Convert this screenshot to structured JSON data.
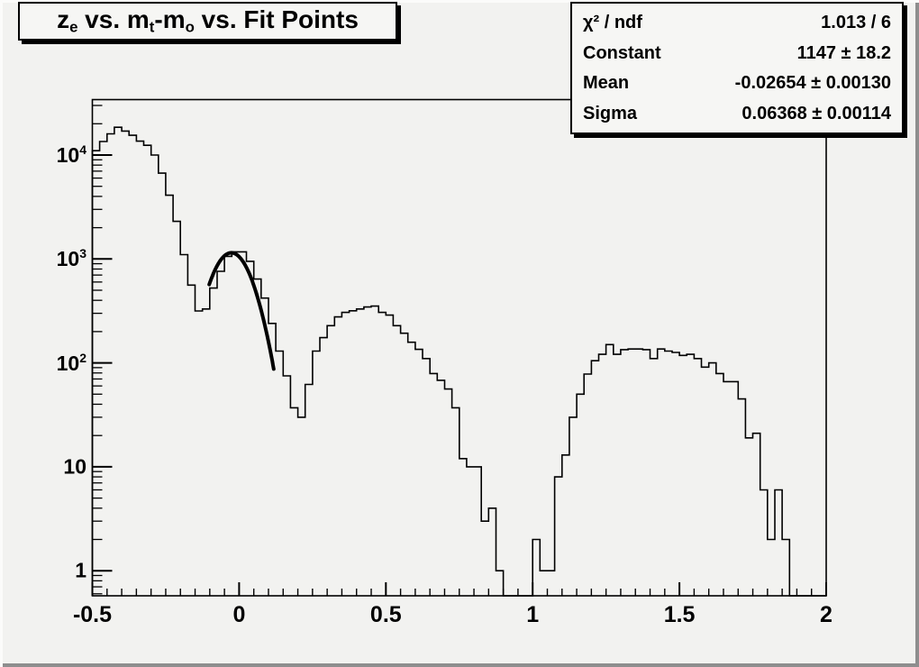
{
  "colors": {
    "background": "#f2f2f0",
    "box_background": "#f6f6f4",
    "ink": "#000000"
  },
  "title_box": {
    "text": "ze vs. mt-mo vs. Fit Points",
    "parts": [
      {
        "text": "z"
      },
      {
        "sub": "e"
      },
      {
        "text": " vs. m"
      },
      {
        "sub": "t"
      },
      {
        "text": "-m"
      },
      {
        "sub": "o"
      },
      {
        "text": " vs. Fit Points"
      }
    ]
  },
  "stats_box": {
    "rows": [
      {
        "label": "χ² / ndf",
        "value": "1.013 / 6"
      },
      {
        "label": "Constant",
        "value": "1147 ± 18.2"
      },
      {
        "label": "Mean",
        "value": "-0.02654 ± 0.00130"
      },
      {
        "label": "Sigma",
        "value": "0.06368 ± 0.00114"
      }
    ]
  },
  "axes": {
    "x": {
      "min": -0.5,
      "max": 2,
      "minor_step": 0.05,
      "major_ticks": [
        {
          "v": -0.5,
          "label": "-0.5"
        },
        {
          "v": 0,
          "label": "0"
        },
        {
          "v": 0.5,
          "label": "0.5"
        },
        {
          "v": 1,
          "label": "1"
        },
        {
          "v": 1.5,
          "label": "1.5"
        },
        {
          "v": 2,
          "label": "2"
        }
      ]
    },
    "y": {
      "scale": "log",
      "major_ticks": [
        {
          "v": 1,
          "base": "1",
          "exp": ""
        },
        {
          "v": 10,
          "base": "10",
          "exp": ""
        },
        {
          "v": 100,
          "base": "10",
          "exp": "2"
        },
        {
          "v": 1000,
          "base": "10",
          "exp": "3"
        },
        {
          "v": 10000,
          "base": "10",
          "exp": "4"
        }
      ]
    }
  },
  "chart_data": {
    "type": "bar",
    "style": "step-histogram",
    "title": "ze vs. mt-mo vs. Fit Points",
    "xlabel": "",
    "ylabel": "",
    "grid": false,
    "legend": "none",
    "yscale": "log",
    "xlim": [
      -0.5,
      2
    ],
    "ylim": [
      0.57,
      34000
    ],
    "x_start": -0.5,
    "bin_width": 0.025,
    "values": [
      11000,
      13500,
      16000,
      18500,
      17000,
      15500,
      13600,
      12400,
      10000,
      6700,
      4100,
      2300,
      1100,
      560,
      316,
      330,
      525,
      760,
      1060,
      1170,
      1170,
      950,
      640,
      420,
      240,
      130,
      75,
      37,
      30,
      62,
      130,
      175,
      228,
      277,
      306,
      317,
      330,
      345,
      352,
      306,
      288,
      228,
      193,
      158,
      135,
      110,
      79,
      68,
      56,
      37,
      12,
      10,
      10,
      3,
      4,
      1,
      0,
      0,
      0,
      0,
      2,
      1,
      1,
      8,
      13,
      30,
      50,
      78,
      105,
      121,
      150,
      121,
      134,
      136,
      136,
      134,
      110,
      136,
      130,
      126,
      118,
      121,
      110,
      91,
      100,
      79,
      66,
      66,
      45,
      19,
      21,
      6,
      2,
      6,
      2,
      0,
      0,
      0,
      0,
      0
    ],
    "fit": {
      "type": "gaussian",
      "chi2": 1.013,
      "ndf": 6,
      "constant": 1147,
      "constant_err": 18.2,
      "mean": -0.02654,
      "mean_err": 0.0013,
      "sigma": 0.06368,
      "sigma_err": 0.00114,
      "draw_range": [
        -0.102,
        0.118
      ]
    }
  }
}
